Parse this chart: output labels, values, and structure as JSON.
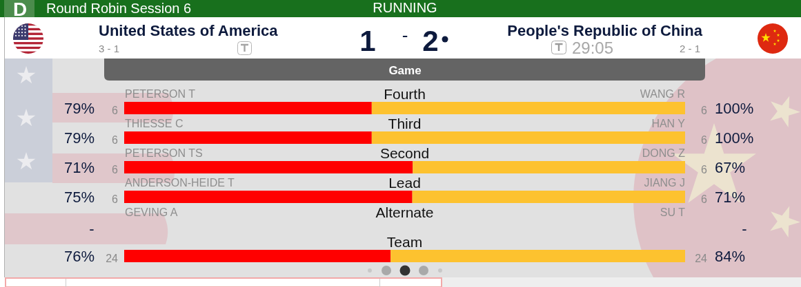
{
  "chart_data": [
    {
      "type": "other",
      "title": "Round Robin Session 6",
      "annotations": [
        "D",
        "RUNNING",
        "United States of America",
        "3 - 1",
        "1",
        "-",
        "2",
        "People's Republic of China",
        "29:05",
        "2 - 1",
        "Game"
      ]
    },
    {
      "type": "bar",
      "orientation": "horizontal",
      "stacked": true,
      "tick_labels": "y",
      "categories": [
        "Fourth"
      ],
      "xlim": [
        0,
        179
      ],
      "series": [
        {
          "color": "#ff0000",
          "values": [
            79
          ],
          "value_labels": [
            "79%"
          ]
        },
        {
          "color": "#fdc22f",
          "values": [
            100
          ],
          "value_labels": [
            "100%"
          ]
        }
      ],
      "annotations": [
        "6",
        "6",
        "PETERSON T",
        "WANG R"
      ]
    },
    {
      "type": "bar",
      "orientation": "horizontal",
      "stacked": true,
      "tick_labels": "y",
      "categories": [
        "Third"
      ],
      "xlim": [
        0,
        179
      ],
      "series": [
        {
          "color": "#ff0000",
          "values": [
            79
          ],
          "value_labels": [
            "79%"
          ]
        },
        {
          "color": "#fdc22f",
          "values": [
            100
          ],
          "value_labels": [
            "100%"
          ]
        }
      ],
      "annotations": [
        "6",
        "6",
        "THIESSE C",
        "HAN Y"
      ]
    },
    {
      "type": "bar",
      "orientation": "horizontal",
      "stacked": true,
      "tick_labels": "y",
      "categories": [
        "Second"
      ],
      "xlim": [
        0,
        138
      ],
      "series": [
        {
          "color": "#ff0000",
          "values": [
            71
          ],
          "value_labels": [
            "71%"
          ]
        },
        {
          "color": "#fdc22f",
          "values": [
            67
          ],
          "value_labels": [
            "67%"
          ]
        }
      ],
      "annotations": [
        "6",
        "6",
        "PETERSON TS",
        "DONG Z"
      ]
    },
    {
      "type": "bar",
      "orientation": "horizontal",
      "stacked": true,
      "tick_labels": "y",
      "categories": [
        "Lead"
      ],
      "xlim": [
        0,
        146
      ],
      "series": [
        {
          "color": "#ff0000",
          "values": [
            75
          ],
          "value_labels": [
            "75%"
          ]
        },
        {
          "color": "#fdc22f",
          "values": [
            71
          ],
          "value_labels": [
            "71%"
          ]
        }
      ],
      "annotations": [
        "6",
        "6",
        "ANDERSON-HEIDE T",
        "JIANG J"
      ]
    },
    {
      "type": "other",
      "annotations": [
        "GEVING A",
        "Alternate",
        "SU T",
        "-",
        "-"
      ]
    },
    {
      "type": "bar",
      "orientation": "horizontal",
      "stacked": true,
      "tick_labels": "y",
      "categories": [
        "Team"
      ],
      "xlim": [
        0,
        160
      ],
      "series": [
        {
          "color": "#ff0000",
          "values": [
            76
          ],
          "value_labels": [
            "76%"
          ]
        },
        {
          "color": "#fdc22f",
          "values": [
            84
          ],
          "value_labels": [
            "84%"
          ]
        }
      ],
      "annotations": [
        "24",
        "24"
      ]
    }
  ]
}
